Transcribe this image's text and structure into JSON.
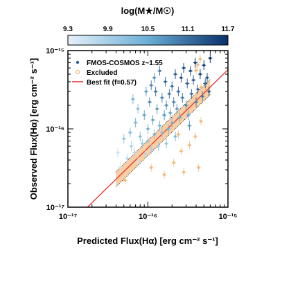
{
  "chart_data": {
    "type": "scatter",
    "x_scale": "log",
    "y_scale": "log",
    "xlim": [
      1e-17,
      1e-15
    ],
    "ylim": [
      1e-17,
      1e-15
    ],
    "xlabel": "Predicted Flux(Hα) [erg cm⁻² s⁻¹]",
    "ylabel": "Observed Flux(Hα) [erg cm⁻² s⁻¹]",
    "x_ticks": [
      {
        "v": 1e-17,
        "label": "10⁻¹⁷"
      },
      {
        "v": 1e-16,
        "label": "10⁻¹⁶"
      },
      {
        "v": 1e-15,
        "label": "10⁻¹⁵"
      }
    ],
    "y_ticks": [
      {
        "v": 1e-17,
        "label": "10⁻¹⁷"
      },
      {
        "v": 1e-16,
        "label": "10⁻¹⁶"
      },
      {
        "v": 1e-15,
        "label": "10⁻¹⁵"
      }
    ],
    "colorbar": {
      "label": "log(M★/M☉)",
      "range": [
        9.3,
        11.7
      ],
      "ticks": [
        "9.3",
        "9.9",
        "10.5",
        "11.1",
        "11.7"
      ],
      "low_color": "#e6f0fa",
      "high_color": "#08306b"
    },
    "legend": {
      "placement": "top-left",
      "entries": [
        {
          "label": "FMOS-COSMOS z~1.55",
          "marker": "dot",
          "color": "#2b5da8"
        },
        {
          "label": "Excluded",
          "marker": "open-circle",
          "color": "#f5b26b"
        },
        {
          "label": "Best fit (f=0.57)",
          "marker": "line",
          "color": "#e8312a"
        }
      ]
    },
    "fit": {
      "relation": "observed = 0.57 × predicted",
      "f": 0.57,
      "color": "#e8312a",
      "band_x": [
        4e-17,
        6e-16
      ],
      "band_color": "#f7b97a"
    },
    "series": [
      {
        "name": "FMOS-COSMOS z~1.55",
        "points": [
          {
            "x": 4.2e-17,
            "y": 5e-17,
            "m": 9.6
          },
          {
            "x": 4.5e-17,
            "y": 3.2e-17,
            "m": 9.5
          },
          {
            "x": 5e-17,
            "y": 7.5e-17,
            "m": 10.1
          },
          {
            "x": 5.5e-17,
            "y": 4.2e-17,
            "m": 9.7
          },
          {
            "x": 6e-17,
            "y": 9e-17,
            "m": 10.3
          },
          {
            "x": 6.2e-17,
            "y": 6e-17,
            "m": 9.9
          },
          {
            "x": 6.8e-17,
            "y": 5e-17,
            "m": 9.8
          },
          {
            "x": 7e-17,
            "y": 1.2e-16,
            "m": 10.4
          },
          {
            "x": 7.5e-17,
            "y": 3.8e-17,
            "m": 9.6
          },
          {
            "x": 8e-17,
            "y": 8e-17,
            "m": 10.2
          },
          {
            "x": 8.5e-17,
            "y": 6.5e-17,
            "m": 10.0
          },
          {
            "x": 9e-17,
            "y": 1.5e-16,
            "m": 10.6
          },
          {
            "x": 9.2e-17,
            "y": 4.8e-17,
            "m": 9.8
          },
          {
            "x": 1e-16,
            "y": 1e-16,
            "m": 10.5
          },
          {
            "x": 1e-16,
            "y": 7e-17,
            "m": 10.1
          },
          {
            "x": 1.05e-16,
            "y": 2.2e-16,
            "m": 10.9
          },
          {
            "x": 1.1e-16,
            "y": 5.5e-17,
            "m": 9.9
          },
          {
            "x": 1.15e-16,
            "y": 1.3e-16,
            "m": 10.6
          },
          {
            "x": 1.2e-16,
            "y": 8.5e-17,
            "m": 10.3
          },
          {
            "x": 1.25e-16,
            "y": 3e-16,
            "m": 11.0
          },
          {
            "x": 1.3e-16,
            "y": 1.8e-16,
            "m": 10.7
          },
          {
            "x": 1.35e-16,
            "y": 6e-17,
            "m": 10.0
          },
          {
            "x": 1.4e-16,
            "y": 1.1e-16,
            "m": 10.4
          },
          {
            "x": 1.5e-16,
            "y": 2.5e-16,
            "m": 10.9
          },
          {
            "x": 1.5e-16,
            "y": 9e-17,
            "m": 10.2
          },
          {
            "x": 1.6e-16,
            "y": 1.5e-16,
            "m": 10.7
          },
          {
            "x": 1.65e-16,
            "y": 4e-16,
            "m": 11.2
          },
          {
            "x": 1.7e-16,
            "y": 2e-16,
            "m": 10.8
          },
          {
            "x": 1.8e-16,
            "y": 1e-16,
            "m": 10.5
          },
          {
            "x": 1.85e-16,
            "y": 2.8e-16,
            "m": 11.0
          },
          {
            "x": 1.9e-16,
            "y": 1.6e-16,
            "m": 10.6
          },
          {
            "x": 2e-16,
            "y": 3.5e-16,
            "m": 11.1
          },
          {
            "x": 2e-16,
            "y": 1.2e-16,
            "m": 10.4
          },
          {
            "x": 2.1e-16,
            "y": 2.2e-16,
            "m": 10.9
          },
          {
            "x": 2.2e-16,
            "y": 5e-16,
            "m": 11.3
          },
          {
            "x": 2.3e-16,
            "y": 1.8e-16,
            "m": 10.7
          },
          {
            "x": 2.4e-16,
            "y": 3e-16,
            "m": 11.1
          },
          {
            "x": 2.5e-16,
            "y": 1.4e-16,
            "m": 10.5
          },
          {
            "x": 2.6e-16,
            "y": 4.5e-16,
            "m": 11.4
          },
          {
            "x": 2.7e-16,
            "y": 2.5e-16,
            "m": 11.0
          },
          {
            "x": 2.8e-16,
            "y": 6e-16,
            "m": 11.5
          },
          {
            "x": 3e-16,
            "y": 2e-16,
            "m": 10.8
          },
          {
            "x": 3.1e-16,
            "y": 3.8e-16,
            "m": 11.2
          },
          {
            "x": 3.2e-16,
            "y": 1.5e-16,
            "m": 10.6
          },
          {
            "x": 3.4e-16,
            "y": 5.5e-16,
            "m": 11.5
          },
          {
            "x": 3.5e-16,
            "y": 2.8e-16,
            "m": 11.1
          },
          {
            "x": 3.7e-16,
            "y": 4.2e-16,
            "m": 11.3
          },
          {
            "x": 3.9e-16,
            "y": 7e-16,
            "m": 11.6
          },
          {
            "x": 4e-16,
            "y": 2.2e-16,
            "m": 10.9
          },
          {
            "x": 4.2e-16,
            "y": 3.2e-16,
            "m": 11.2
          },
          {
            "x": 4.5e-16,
            "y": 5e-16,
            "m": 11.5
          },
          {
            "x": 4.8e-16,
            "y": 2.6e-16,
            "m": 11.0
          },
          {
            "x": 5e-16,
            "y": 6.5e-16,
            "m": 11.6
          },
          {
            "x": 5.2e-16,
            "y": 3.8e-16,
            "m": 11.3
          },
          {
            "x": 5.5e-16,
            "y": 4.5e-16,
            "m": 11.4
          },
          {
            "x": 5.8e-16,
            "y": 3e-16,
            "m": 11.2
          },
          {
            "x": 6e-16,
            "y": 8e-16,
            "m": 11.7
          },
          {
            "x": 1.2e-16,
            "y": 4.5e-16,
            "m": 10.8
          },
          {
            "x": 9.5e-17,
            "y": 3e-16,
            "m": 10.6
          },
          {
            "x": 7.5e-17,
            "y": 1.8e-16,
            "m": 10.2
          },
          {
            "x": 1.4e-16,
            "y": 5.5e-16,
            "m": 11.0
          },
          {
            "x": 2.2e-16,
            "y": 8e-17,
            "m": 10.3
          },
          {
            "x": 1.7e-16,
            "y": 6.5e-17,
            "m": 10.1
          },
          {
            "x": 3.3e-16,
            "y": 1.1e-16,
            "m": 10.7
          },
          {
            "x": 6.5e-17,
            "y": 2.4e-16,
            "m": 10.4
          },
          {
            "x": 1.1e-16,
            "y": 3.6e-16,
            "m": 10.9
          }
        ]
      },
      {
        "name": "Excluded",
        "points": [
          {
            "x": 5.2e-17,
            "y": 2.2e-17
          },
          {
            "x": 1.1e-16,
            "y": 3.2e-17
          },
          {
            "x": 2.6e-16,
            "y": 5.2e-17
          },
          {
            "x": 2.1e-16,
            "y": 3.7e-17
          },
          {
            "x": 3.3e-16,
            "y": 6.2e-17
          },
          {
            "x": 4.3e-16,
            "y": 3.2e-17
          },
          {
            "x": 2.8e-16,
            "y": 2.8e-17
          },
          {
            "x": 3.9e-16,
            "y": 8e-17
          },
          {
            "x": 4.6e-16,
            "y": 1.25e-16
          },
          {
            "x": 4.6e-16,
            "y": 3.4e-16
          },
          {
            "x": 4.5e-16,
            "y": 7.8e-16
          },
          {
            "x": 4.2e-16,
            "y": 6.6e-16
          },
          {
            "x": 4e-16,
            "y": 5.6e-16
          },
          {
            "x": 1.6e-16,
            "y": 2.6e-17
          },
          {
            "x": 2.4e-16,
            "y": 8.5e-17
          }
        ]
      }
    ]
  }
}
